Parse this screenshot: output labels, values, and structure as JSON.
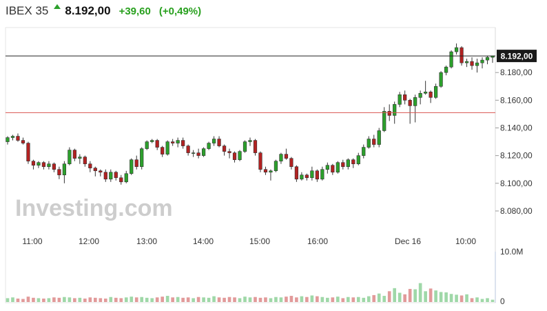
{
  "header": {
    "title": "IBEX 35",
    "price": "8.192,00",
    "change": "+39,60",
    "change_pct": "(+0,49%)",
    "arrow_icon": "up-arrow-icon",
    "up_color": "#28a01e"
  },
  "watermark": "Investing.com",
  "chart_data": {
    "type": "candlestick",
    "x_tick_labels": [
      "11:00",
      "12:00",
      "13:00",
      "14:00",
      "15:00",
      "16:00",
      "Dec 16",
      "10:00"
    ],
    "y_tick_labels": [
      "8.180,00",
      "8.160,00",
      "8.140,00",
      "8.120,00",
      "8.100,00",
      "8.080,00"
    ],
    "ylim": [
      8072,
      8205
    ],
    "current_price_label": "8.192,00",
    "current_price": 8192,
    "reference_line": 8151,
    "volume_axis_labels": [
      "10.0M",
      "0"
    ],
    "colors": {
      "up": "#2ca02c",
      "down": "#b22222",
      "up_volume": "#9fd8a8",
      "down_volume": "#e29a9a"
    },
    "candles": [
      [
        8130,
        8134,
        8128,
        8133
      ],
      [
        8133,
        8135,
        8131,
        8134
      ],
      [
        8134,
        8136,
        8130,
        8131
      ],
      [
        8131,
        8133,
        8128,
        8129
      ],
      [
        8129,
        8130,
        8114,
        8116
      ],
      [
        8116,
        8117,
        8110,
        8113
      ],
      [
        8113,
        8116,
        8111,
        8115
      ],
      [
        8115,
        8116,
        8110,
        8112
      ],
      [
        8112,
        8116,
        8110,
        8114
      ],
      [
        8114,
        8115,
        8108,
        8110
      ],
      [
        8110,
        8112,
        8103,
        8106
      ],
      [
        8106,
        8116,
        8100,
        8114
      ],
      [
        8114,
        8126,
        8113,
        8124
      ],
      [
        8124,
        8125,
        8116,
        8118
      ],
      [
        8118,
        8121,
        8114,
        8119
      ],
      [
        8119,
        8120,
        8112,
        8114
      ],
      [
        8114,
        8116,
        8108,
        8111
      ],
      [
        8111,
        8112,
        8105,
        8109
      ],
      [
        8109,
        8110,
        8105,
        8108
      ],
      [
        8108,
        8110,
        8101,
        8103
      ],
      [
        8103,
        8110,
        8101,
        8108
      ],
      [
        8108,
        8109,
        8102,
        8104
      ],
      [
        8104,
        8106,
        8099,
        8101
      ],
      [
        8101,
        8109,
        8100,
        8107
      ],
      [
        8107,
        8118,
        8106,
        8117
      ],
      [
        8117,
        8120,
        8110,
        8112
      ],
      [
        8112,
        8126,
        8110,
        8125
      ],
      [
        8125,
        8131,
        8124,
        8130
      ],
      [
        8130,
        8132,
        8129,
        8131
      ],
      [
        8131,
        8132,
        8124,
        8126
      ],
      [
        8126,
        8127,
        8119,
        8121
      ],
      [
        8121,
        8131,
        8120,
        8130
      ],
      [
        8130,
        8132,
        8127,
        8129
      ],
      [
        8129,
        8133,
        8126,
        8131
      ],
      [
        8131,
        8133,
        8125,
        8127
      ],
      [
        8127,
        8128,
        8120,
        8122
      ],
      [
        8122,
        8124,
        8119,
        8122
      ],
      [
        8122,
        8125,
        8118,
        8120
      ],
      [
        8120,
        8126,
        8119,
        8125
      ],
      [
        8125,
        8130,
        8124,
        8129
      ],
      [
        8129,
        8134,
        8127,
        8132
      ],
      [
        8132,
        8134,
        8126,
        8127
      ],
      [
        8127,
        8128,
        8120,
        8123
      ],
      [
        8123,
        8125,
        8118,
        8122
      ],
      [
        8122,
        8123,
        8115,
        8117
      ],
      [
        8117,
        8124,
        8116,
        8123
      ],
      [
        8123,
        8131,
        8122,
        8130
      ],
      [
        8130,
        8133,
        8127,
        8131
      ],
      [
        8131,
        8132,
        8120,
        8122
      ],
      [
        8122,
        8123,
        8108,
        8110
      ],
      [
        8110,
        8112,
        8106,
        8108
      ],
      [
        8108,
        8110,
        8102,
        8109
      ],
      [
        8109,
        8117,
        8108,
        8116
      ],
      [
        8116,
        8122,
        8114,
        8121
      ],
      [
        8121,
        8125,
        8117,
        8118
      ],
      [
        8118,
        8119,
        8110,
        8112
      ],
      [
        8112,
        8113,
        8101,
        8103
      ],
      [
        8103,
        8108,
        8102,
        8106
      ],
      [
        8106,
        8107,
        8102,
        8104
      ],
      [
        8104,
        8112,
        8102,
        8109
      ],
      [
        8109,
        8110,
        8101,
        8103
      ],
      [
        8103,
        8112,
        8102,
        8110
      ],
      [
        8110,
        8115,
        8107,
        8113
      ],
      [
        8113,
        8114,
        8106,
        8108
      ],
      [
        8108,
        8116,
        8107,
        8115
      ],
      [
        8115,
        8117,
        8110,
        8112
      ],
      [
        8112,
        8118,
        8110,
        8117
      ],
      [
        8117,
        8118,
        8111,
        8114
      ],
      [
        8114,
        8122,
        8113,
        8120
      ],
      [
        8120,
        8128,
        8118,
        8126
      ],
      [
        8126,
        8134,
        8125,
        8132
      ],
      [
        8132,
        8135,
        8126,
        8128
      ],
      [
        8128,
        8140,
        8126,
        8138
      ],
      [
        8138,
        8155,
        8137,
        8152
      ],
      [
        8152,
        8157,
        8145,
        8149
      ],
      [
        8149,
        8159,
        8143,
        8157
      ],
      [
        8157,
        8166,
        8155,
        8164
      ],
      [
        8164,
        8167,
        8157,
        8160
      ],
      [
        8160,
        8161,
        8143,
        8156
      ],
      [
        8156,
        8164,
        8144,
        8162
      ],
      [
        8162,
        8167,
        8157,
        8165
      ],
      [
        8165,
        8174,
        8164,
        8166
      ],
      [
        8166,
        8167,
        8158,
        8162
      ],
      [
        8162,
        8172,
        8161,
        8170
      ],
      [
        8170,
        8181,
        8169,
        8180
      ],
      [
        8180,
        8185,
        8178,
        8184
      ],
      [
        8184,
        8196,
        8183,
        8195
      ],
      [
        8195,
        8201,
        8193,
        8198
      ],
      [
        8198,
        8199,
        8185,
        8187
      ],
      [
        8187,
        8190,
        8184,
        8188
      ],
      [
        8188,
        8191,
        8182,
        8185
      ],
      [
        8185,
        8190,
        8180,
        8187
      ],
      [
        8187,
        8191,
        8183,
        8189
      ],
      [
        8189,
        8192,
        8186,
        8191
      ],
      [
        8191,
        8192,
        8187,
        8192
      ]
    ],
    "volumes": [
      0.1,
      0.12,
      0.09,
      0.08,
      0.14,
      0.11,
      0.1,
      0.09,
      0.1,
      0.12,
      0.11,
      0.13,
      0.12,
      0.1,
      0.11,
      0.09,
      0.12,
      0.11,
      0.1,
      0.09,
      0.13,
      0.11,
      0.1,
      0.12,
      0.14,
      0.12,
      0.13,
      0.11,
      0.1,
      0.12,
      0.14,
      0.16,
      0.12,
      0.13,
      0.11,
      0.12,
      0.1,
      0.13,
      0.12,
      0.11,
      0.15,
      0.12,
      0.11,
      0.13,
      0.12,
      0.1,
      0.14,
      0.12,
      0.13,
      0.11,
      0.12,
      0.1,
      0.13,
      0.12,
      0.14,
      0.16,
      0.12,
      0.15,
      0.13,
      0.17,
      0.15,
      0.13,
      0.11,
      0.12,
      0.14,
      0.1,
      0.13,
      0.12,
      0.13,
      0.11,
      0.15,
      0.18,
      0.22,
      0.16,
      0.28,
      0.36,
      0.24,
      0.2,
      0.34,
      0.33,
      0.49,
      0.28,
      0.35,
      0.3,
      0.26,
      0.25,
      0.21,
      0.19,
      0.17,
      0.2,
      0.1,
      0.12,
      0.08,
      0.1,
      0.06
    ]
  }
}
